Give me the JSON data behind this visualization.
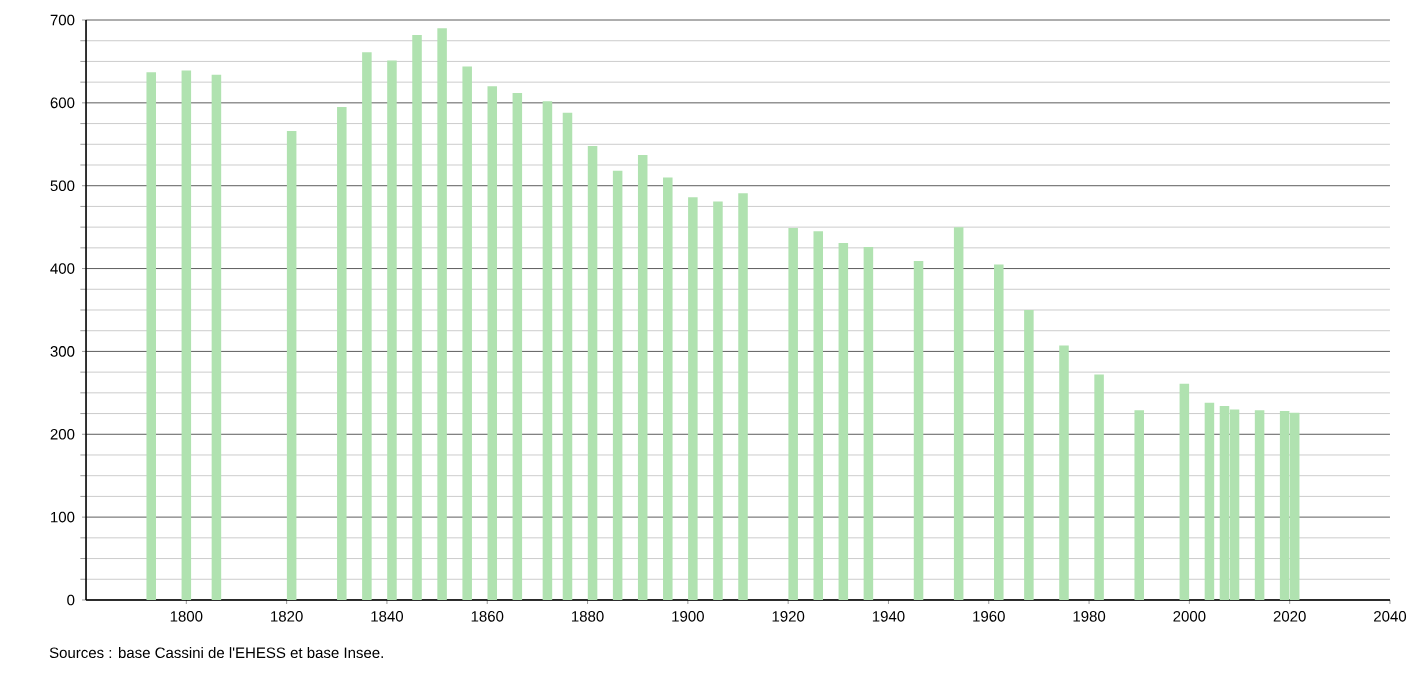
{
  "chart_data": {
    "type": "bar",
    "x": [
      1793,
      1800,
      1806,
      1821,
      1831,
      1836,
      1841,
      1846,
      1851,
      1856,
      1861,
      1866,
      1872,
      1876,
      1881,
      1886,
      1891,
      1896,
      1901,
      1906,
      1911,
      1921,
      1926,
      1931,
      1936,
      1946,
      1954,
      1962,
      1968,
      1975,
      1982,
      1990,
      1999,
      2004,
      2007,
      2009,
      2014,
      2019,
      2021
    ],
    "values": [
      637,
      639,
      634,
      566,
      595,
      661,
      651,
      682,
      690,
      644,
      620,
      612,
      602,
      588,
      548,
      518,
      537,
      510,
      486,
      481,
      491,
      449,
      445,
      431,
      426,
      409,
      450,
      405,
      350,
      307,
      272,
      229,
      261,
      238,
      234,
      230,
      229,
      228,
      226
    ],
    "color": "#b0e2b0",
    "xlim": [
      1780,
      2040
    ],
    "xticks": [
      1800,
      1820,
      1840,
      1860,
      1880,
      1900,
      1920,
      1940,
      1960,
      1980,
      2000,
      2020,
      2040
    ],
    "ylim": [
      0,
      700
    ],
    "yticks": [
      0,
      100,
      200,
      300,
      400,
      500,
      600,
      700
    ],
    "grid": "y",
    "annotations": [
      "Sources : base Cassini de l'EHESS et base Insee."
    ]
  }
}
